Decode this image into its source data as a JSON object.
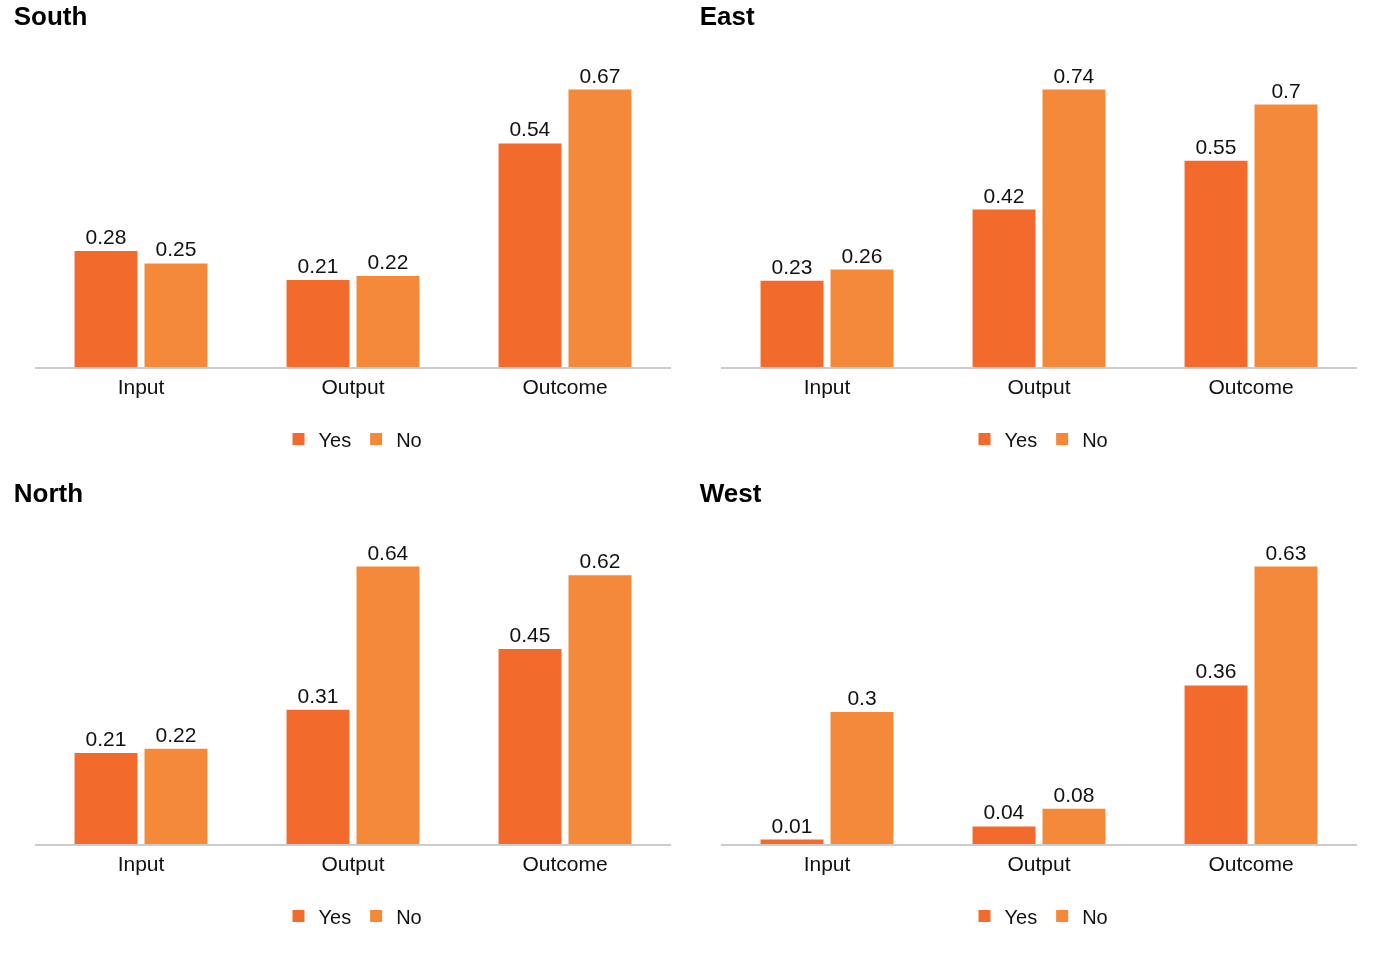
{
  "chart_data": [
    {
      "type": "bar",
      "title": "South",
      "categories": [
        "Input",
        "Output",
        "Outcome"
      ],
      "data_labels": true,
      "legend": "bottom",
      "grid": false,
      "series": [
        {
          "name": "Yes",
          "color": "#f26a2c",
          "values": [
            0.28,
            0.21,
            0.54
          ]
        },
        {
          "name": "No",
          "color": "#f5893a",
          "values": [
            0.25,
            0.22,
            0.67
          ]
        }
      ]
    },
    {
      "type": "bar",
      "title": "East",
      "categories": [
        "Input",
        "Output",
        "Outcome"
      ],
      "data_labels": true,
      "legend": "bottom",
      "grid": false,
      "series": [
        {
          "name": "Yes",
          "color": "#f26a2c",
          "values": [
            0.23,
            0.42,
            0.55
          ]
        },
        {
          "name": "No",
          "color": "#f5893a",
          "values": [
            0.26,
            0.74,
            0.7
          ]
        }
      ]
    },
    {
      "type": "bar",
      "title": "North",
      "categories": [
        "Input",
        "Output",
        "Outcome"
      ],
      "data_labels": true,
      "legend": "bottom",
      "grid": false,
      "series": [
        {
          "name": "Yes",
          "color": "#f26a2c",
          "values": [
            0.21,
            0.31,
            0.45
          ]
        },
        {
          "name": "No",
          "color": "#f5893a",
          "values": [
            0.22,
            0.64,
            0.62
          ]
        }
      ]
    },
    {
      "type": "bar",
      "title": "West",
      "categories": [
        "Input",
        "Output",
        "Outcome"
      ],
      "data_labels": true,
      "legend": "bottom",
      "grid": false,
      "series": [
        {
          "name": "Yes",
          "color": "#f26a2c",
          "values": [
            0.01,
            0.04,
            0.36
          ]
        },
        {
          "name": "No",
          "color": "#f5893a",
          "values": [
            0.3,
            0.08,
            0.63
          ]
        }
      ]
    }
  ]
}
